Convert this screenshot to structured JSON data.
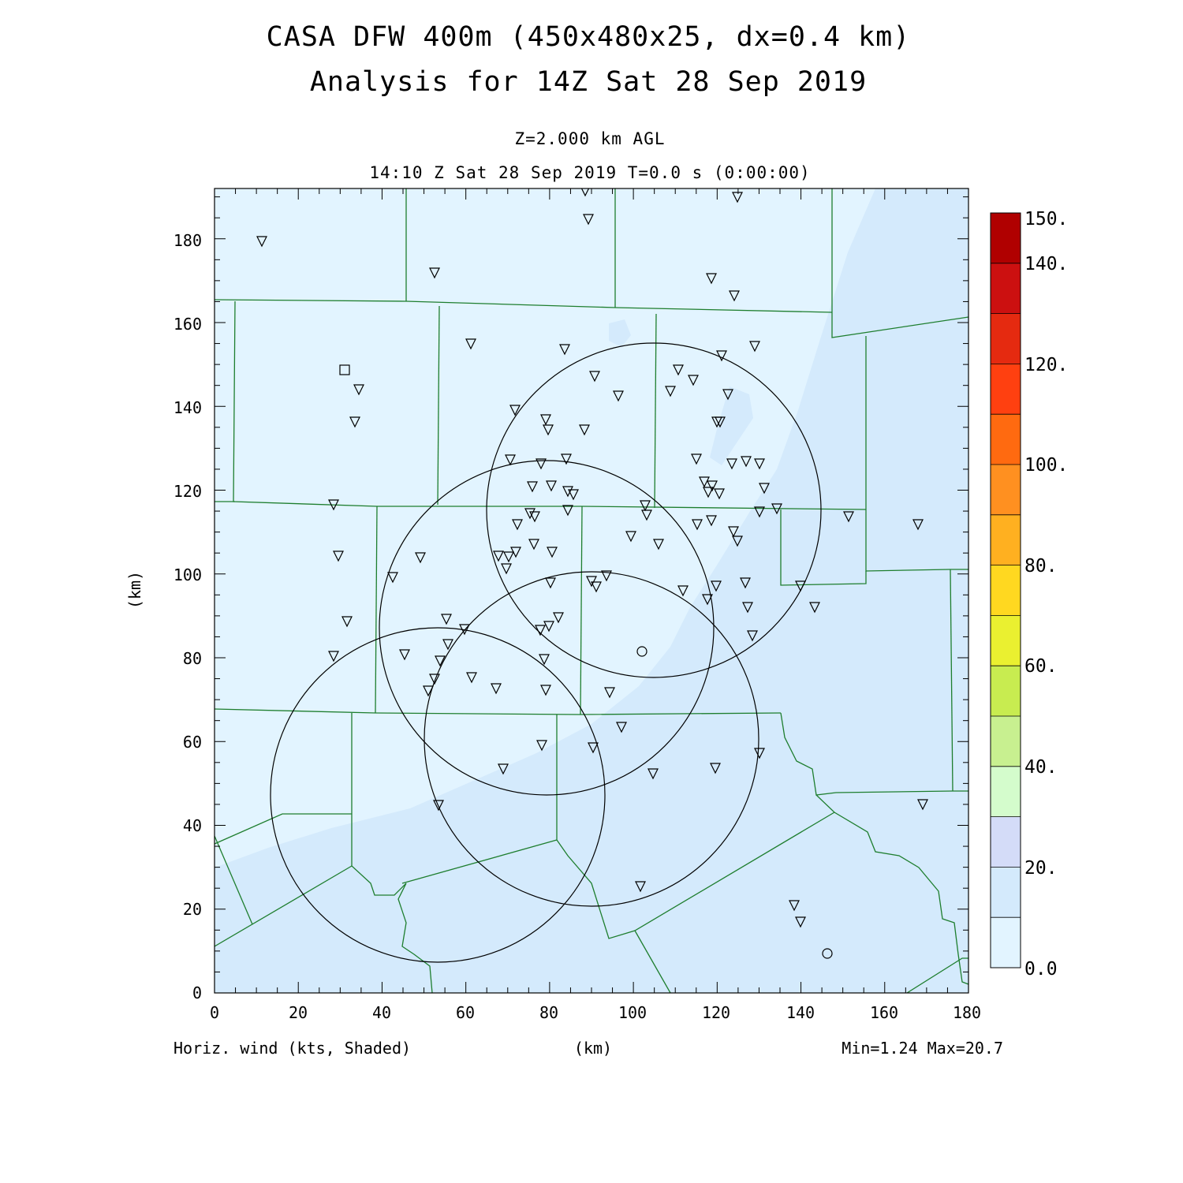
{
  "titles": {
    "line1": "CASA DFW 400m (450x480x25, dx=0.4 km)",
    "line2": "Analysis for 14Z Sat 28 Sep 2019",
    "level": "Z=2.000 km AGL",
    "time": "14:10 Z Sat 28 Sep 2019    T=0.0 s (0:00:00)"
  },
  "footer": {
    "field": "Horiz. wind (kts, Shaded)",
    "xunit": "(km)",
    "minmax": "Min=1.24 Max=20.7"
  },
  "axes": {
    "ylabel": "(km)",
    "x_ticks": [
      "0",
      "20",
      "40",
      "60",
      "80",
      "100",
      "120",
      "140",
      "160",
      "180"
    ],
    "y_ticks": [
      "0",
      "20",
      "40",
      "60",
      "80",
      "100",
      "120",
      "140",
      "160",
      "180"
    ],
    "xlim": [
      0,
      180
    ],
    "ylim": [
      0,
      192
    ]
  },
  "colorbar": {
    "labels": [
      "150.",
      "140.",
      "120.",
      "100.",
      "80.",
      "60.",
      "40.",
      "20.",
      "0.0"
    ],
    "colors": [
      "#b00000",
      "#cc1010",
      "#e52a10",
      "#ff4010",
      "#ff6a10",
      "#ff9020",
      "#ffb020",
      "#ffd820",
      "#eaf030",
      "#c8ec50",
      "#c8f090",
      "#d4fccc",
      "#d4dcf8",
      "#d4eafc",
      "#e2f4ff"
    ]
  },
  "colors": {
    "shade_light": "#e2f4ff",
    "shade_mid": "#d4eafc",
    "county_lines": "#1e7e2e"
  }
}
